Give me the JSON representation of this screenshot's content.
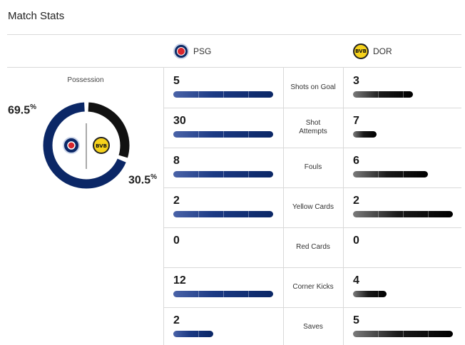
{
  "title": "Match Stats",
  "teams": {
    "home": {
      "name": "PSG",
      "color": "#0b2766"
    },
    "away": {
      "name": "DOR",
      "color": "#111111"
    }
  },
  "possession": {
    "label": "Possession",
    "home_pct": "69.5",
    "away_pct": "30.5",
    "pct_sign": "%",
    "home_value": 69.5,
    "away_value": 30.5
  },
  "stats": [
    {
      "label": "Shots on Goal",
      "home": 5,
      "away": 3,
      "home_bar": 1.0,
      "away_bar": 0.6
    },
    {
      "label": "Shot Attempts",
      "home": 30,
      "away": 7,
      "home_bar": 1.0,
      "away_bar": 0.233
    },
    {
      "label": "Fouls",
      "home": 8,
      "away": 6,
      "home_bar": 1.0,
      "away_bar": 0.75
    },
    {
      "label": "Yellow Cards",
      "home": 2,
      "away": 2,
      "home_bar": 1.0,
      "away_bar": 1.0
    },
    {
      "label": "Red Cards",
      "home": 0,
      "away": 0,
      "home_bar": 0,
      "away_bar": 0
    },
    {
      "label": "Corner Kicks",
      "home": 12,
      "away": 4,
      "home_bar": 1.0,
      "away_bar": 0.333
    },
    {
      "label": "Saves",
      "home": 2,
      "away": 5,
      "home_bar": 0.4,
      "away_bar": 1.0
    }
  ],
  "icons": {
    "home_logo": "psg-crest-icon",
    "away_logo": "bvb-crest-icon",
    "away_logo_text": "BVB"
  }
}
